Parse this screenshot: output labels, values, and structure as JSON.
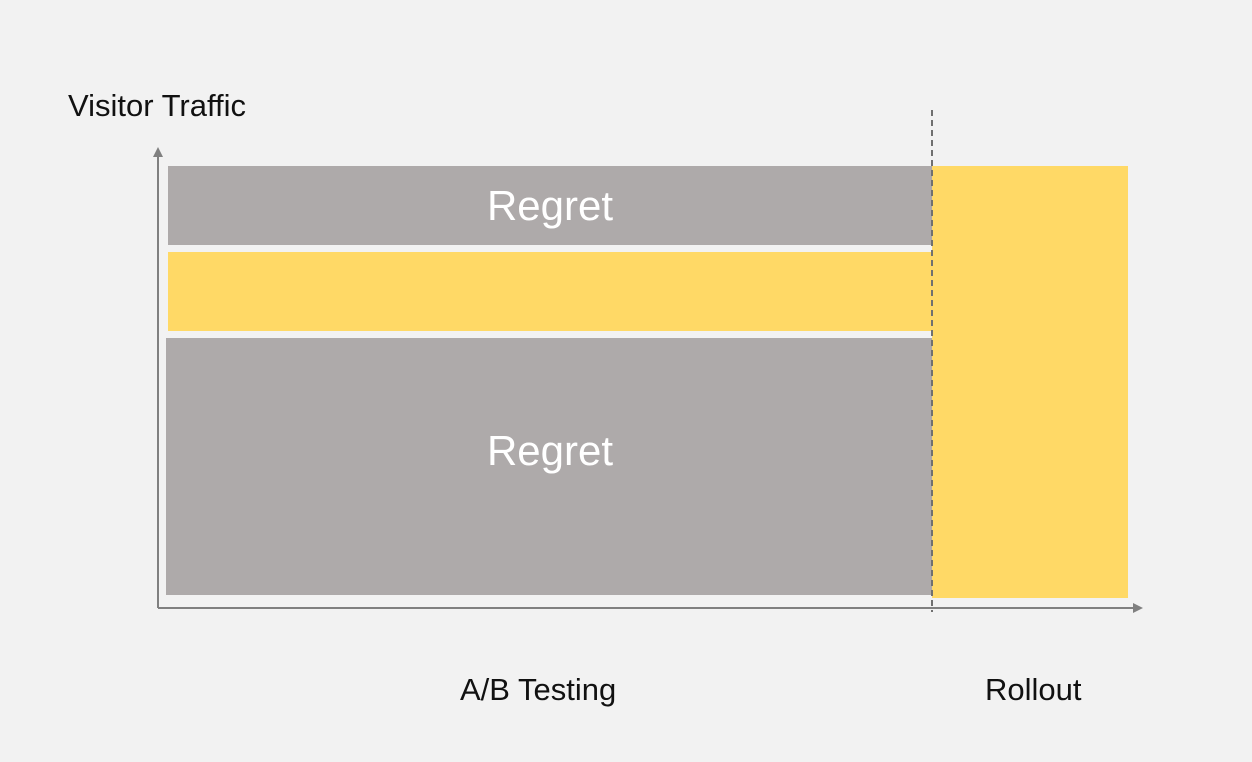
{
  "labels": {
    "y_axis": "Visitor Traffic",
    "phase_testing": "A/B Testing",
    "phase_rollout": "Rollout"
  },
  "bands": [
    {
      "label": "Regret",
      "kind": "regret"
    },
    {
      "label": "",
      "kind": "winner"
    },
    {
      "label": "Regret",
      "kind": "regret"
    }
  ],
  "colors": {
    "background": "#f2f2f2",
    "regret": "#aeaaaa",
    "winner": "#ffd966",
    "axis": "#808080",
    "divider": "#707070",
    "regret_text": "#ffffff"
  }
}
